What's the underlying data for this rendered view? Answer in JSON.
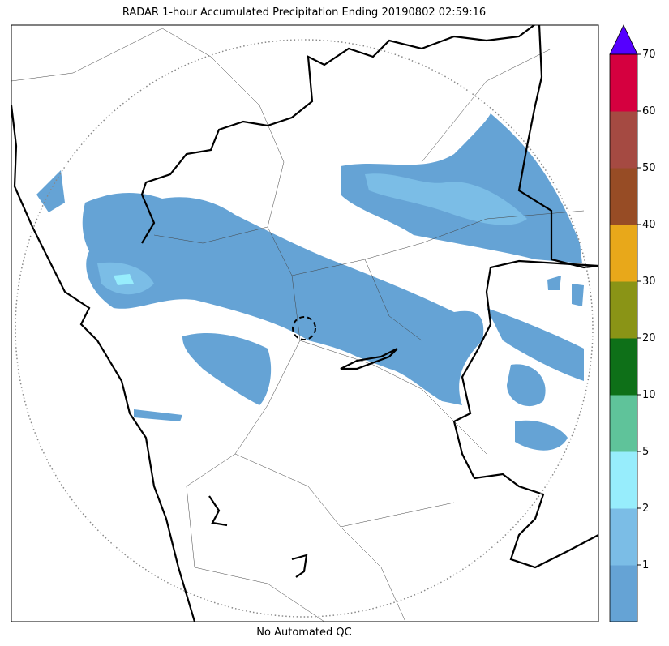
{
  "title": "RADAR 1-hour Accumulated Precipitation Ending 20190802 02:59:16",
  "footer": "No Automated QC",
  "colorbar": {
    "levels": [
      1,
      2,
      5,
      10,
      20,
      30,
      40,
      50,
      60,
      70
    ],
    "colors": [
      "#65a3d5",
      "#7bbde6",
      "#97edfc",
      "#5fc39a",
      "#0e7018",
      "#8a9416",
      "#e8a81a",
      "#974c25",
      "#a54a42",
      "#d5003f"
    ],
    "extend_color": "#5500ff"
  }
}
